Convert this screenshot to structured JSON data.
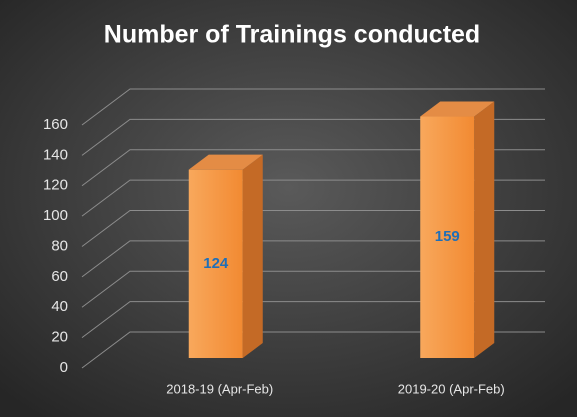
{
  "chart_data": {
    "type": "bar3d",
    "title": "Number of Trainings conducted",
    "categories": [
      "2018-19 (Apr-Feb)",
      "2019-20 (Apr-Feb)"
    ],
    "values": [
      124,
      159
    ],
    "color": "#f39340",
    "ylim": [
      0,
      160
    ],
    "yticks": [
      0,
      20,
      40,
      60,
      80,
      100,
      120,
      140,
      160
    ],
    "grid": true
  }
}
